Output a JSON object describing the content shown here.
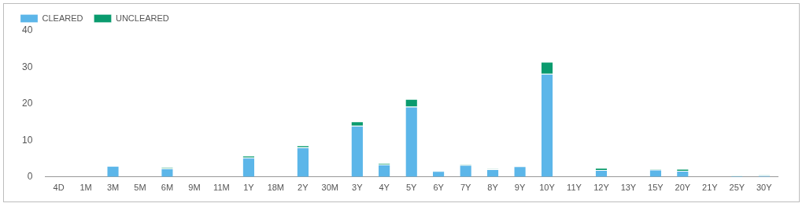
{
  "chart_data": {
    "type": "bar",
    "stacked": true,
    "categories": [
      "4D",
      "1M",
      "3M",
      "5M",
      "6M",
      "9M",
      "11M",
      "1Y",
      "18M",
      "2Y",
      "30M",
      "3Y",
      "4Y",
      "5Y",
      "6Y",
      "7Y",
      "8Y",
      "9Y",
      "10Y",
      "11Y",
      "12Y",
      "13Y",
      "15Y",
      "20Y",
      "21Y",
      "25Y",
      "30Y"
    ],
    "series": [
      {
        "name": "CLEARED",
        "color": "#5cb6e9",
        "values": [
          0,
          0,
          3.0,
          0,
          2.3,
          0,
          0,
          5.3,
          0,
          8.1,
          0,
          14.0,
          3.4,
          19.2,
          1.6,
          3.3,
          2.1,
          2.9,
          28.2,
          0,
          1.9,
          0,
          2.0,
          1.7,
          0,
          0.3,
          0.4
        ]
      },
      {
        "name": "UNCLEARED",
        "color": "#0a9b6e",
        "values": [
          0,
          0,
          0.1,
          0,
          0.3,
          0,
          0,
          0.5,
          0,
          0.5,
          0,
          1.2,
          0.3,
          2.1,
          0.2,
          0.2,
          0.1,
          0.1,
          3.3,
          0,
          0.6,
          0,
          0.2,
          0.5,
          0,
          0.1,
          0.1
        ]
      }
    ],
    "ylim": [
      0,
      40
    ],
    "yticks": [
      0,
      10,
      20,
      30,
      40
    ],
    "grid": false,
    "legend": "top-left"
  }
}
